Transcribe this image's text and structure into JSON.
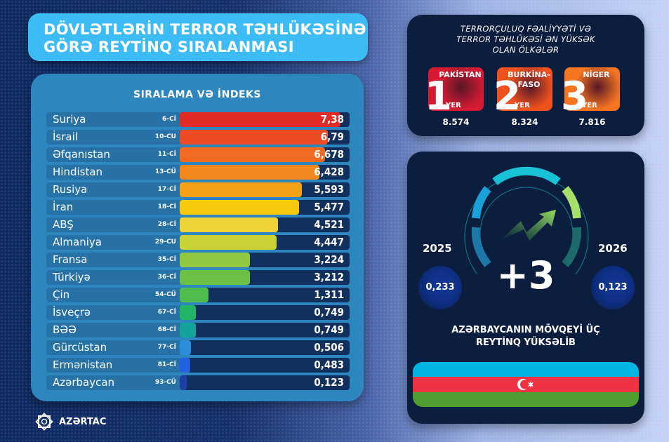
{
  "header": {
    "title_line1": "DÖVLƏTLƏRİN TERROR TƏHLÜKƏSİNƏ",
    "title_line2": "GÖRƏ REYTİNQ SIRALANMASI"
  },
  "ranking": {
    "title": "SIRALAMA VƏ İNDEKS",
    "rows": [
      {
        "country": "Suriya",
        "rank": "6-Cİ",
        "value": "7,38",
        "color": "#e02b27"
      },
      {
        "country": "İsrail",
        "rank": "10-CU",
        "value": "6,79",
        "color": "#ed4a26"
      },
      {
        "country": "Əfqanıstan",
        "rank": "11-Cİ",
        "value": "6,678",
        "color": "#f26a22"
      },
      {
        "country": "Hindistan",
        "rank": "13-CÜ",
        "value": "6,428",
        "color": "#f2891d"
      },
      {
        "country": "Rusiya",
        "rank": "17-Cİ",
        "value": "5,593",
        "color": "#f5a118"
      },
      {
        "country": "İran",
        "rank": "18-Cİ",
        "value": "5,477",
        "color": "#f8c80f"
      },
      {
        "country": "ABŞ",
        "rank": "28-Cİ",
        "value": "4,521",
        "color": "#edd335"
      },
      {
        "country": "Almaniya",
        "rank": "29-CU",
        "value": "4,447",
        "color": "#c7d235"
      },
      {
        "country": "Fransa",
        "rank": "35-Cİ",
        "value": "3,224",
        "color": "#93c843"
      },
      {
        "country": "Türkiyə",
        "rank": "36-Cİ",
        "value": "3,212",
        "color": "#6cbf47"
      },
      {
        "country": "Çin",
        "rank": "54-CÜ",
        "value": "1,311",
        "color": "#4fbc4c"
      },
      {
        "country": "İsveçrə",
        "rank": "67-Cİ",
        "value": "0,749",
        "color": "#22b566"
      },
      {
        "country": "BƏƏ",
        "rank": "68-Cİ",
        "value": "0,749",
        "color": "#12a39c"
      },
      {
        "country": "Gürcüstan",
        "rank": "77-Cİ",
        "value": "0,506",
        "color": "#2a8fdf"
      },
      {
        "country": "Ermənistan",
        "rank": "81-Cİ",
        "value": "0,483",
        "color": "#2560e0"
      },
      {
        "country": "Azərbaycan",
        "rank": "93-CÜ",
        "value": "0,123",
        "color": "#1f3fa6"
      }
    ]
  },
  "top3": {
    "title_line1": "TERRORÇULUQ FƏALİYYƏTİ VƏ",
    "title_line2": "TERROR TƏHLÜKƏSİ ƏN YÜKSƏK",
    "title_line3": "OLAN ÖLKƏLƏR",
    "yer_label": "YER",
    "cards": [
      {
        "place": "1",
        "name": "PAKİSTAN",
        "score": "8.574",
        "color": "#d51a32"
      },
      {
        "place": "2",
        "name": "BURKİNA-\nFASO",
        "score": "8.324",
        "color": "#f0521e"
      },
      {
        "place": "3",
        "name": "NİGER",
        "score": "7.816",
        "color": "#f57521"
      }
    ]
  },
  "azerbaijan": {
    "year_left": "2025",
    "value_left": "0,233",
    "year_right": "2026",
    "value_right": "0,123",
    "change": "+3",
    "caption_line1": "AZƏRBAYCANIN MÖVQEYİ ÜÇ",
    "caption_line2": "REYTİNQ YÜKSƏLİB",
    "flag_colors": [
      "#00b5e2",
      "#ef3340",
      "#509e2f"
    ]
  },
  "footer": {
    "logo_text": "AZƏRTAC"
  },
  "chart_data": {
    "type": "bar",
    "title": "SIRALAMA VƏ İNDEKS",
    "orientation": "horizontal",
    "categories": [
      "Suriya",
      "İsrail",
      "Əfqanıstan",
      "Hindistan",
      "Rusiya",
      "İran",
      "ABŞ",
      "Almaniya",
      "Fransa",
      "Türkiyə",
      "Çin",
      "İsveçrə",
      "BƏƏ",
      "Gürcüstan",
      "Ermənistan",
      "Azərbaycan"
    ],
    "ranks": [
      "6-Cİ",
      "10-CU",
      "11-Cİ",
      "13-CÜ",
      "17-Cİ",
      "18-Cİ",
      "28-Cİ",
      "29-CU",
      "35-Cİ",
      "36-Cİ",
      "54-CÜ",
      "67-Cİ",
      "68-Cİ",
      "77-Cİ",
      "81-Cİ",
      "93-CÜ"
    ],
    "values": [
      7.38,
      6.79,
      6.678,
      6.428,
      5.593,
      5.477,
      4.521,
      4.447,
      3.224,
      3.212,
      1.311,
      0.749,
      0.749,
      0.506,
      0.483,
      0.123
    ],
    "xlabel": "",
    "ylabel": "",
    "top3": [
      {
        "place": 1,
        "country": "Pakistan",
        "score": 8.574
      },
      {
        "place": 2,
        "country": "Burkina-Faso",
        "score": 8.324
      },
      {
        "place": 3,
        "country": "Niger",
        "score": 7.816
      }
    ],
    "azerbaijan_change": {
      "2025": 0.233,
      "2026": 0.123,
      "rank_change": 3
    }
  }
}
